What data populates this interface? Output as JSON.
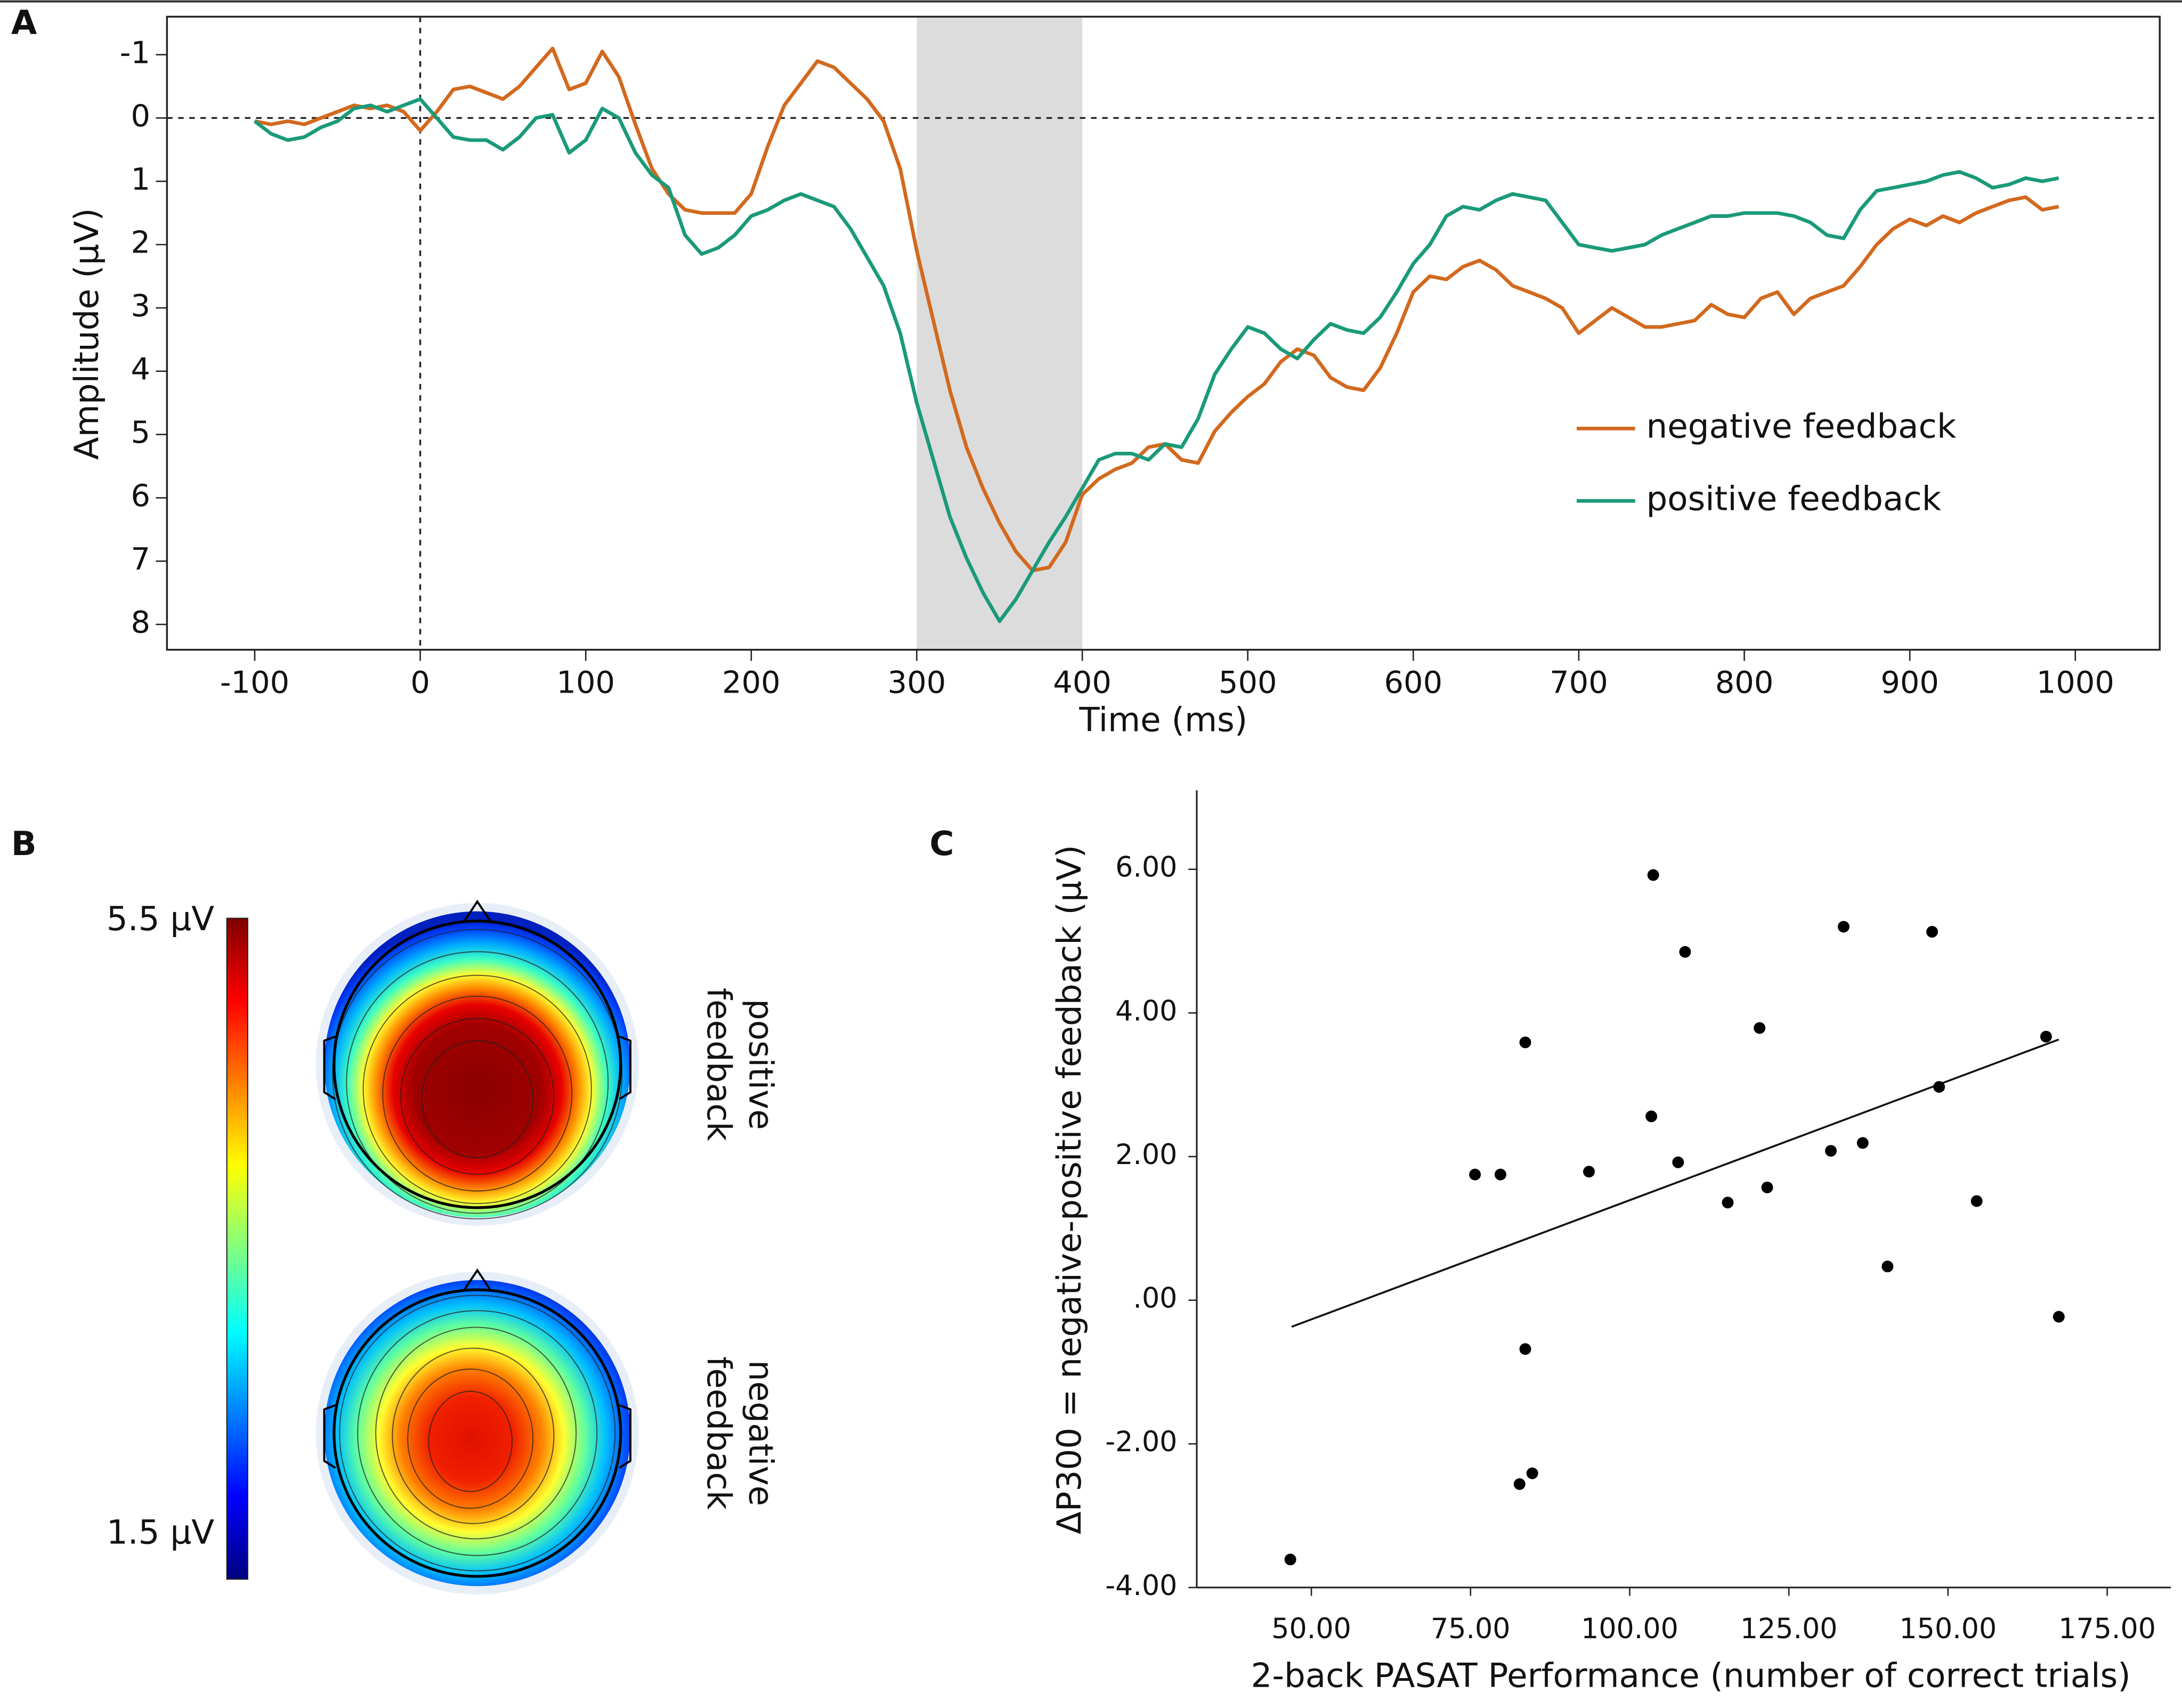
{
  "chart_data": [
    {
      "type": "line",
      "panel": "A",
      "xlabel": "Time (ms)",
      "ylabel": "Amplitude (µV)",
      "xlim": [
        -153,
        1051
      ],
      "ylim": [
        -1.6,
        8.4
      ],
      "y_inverted": true,
      "xticks": [
        -100,
        0,
        100,
        200,
        300,
        400,
        500,
        600,
        700,
        800,
        900,
        1000
      ],
      "yticks": [
        -1,
        0,
        1,
        2,
        3,
        4,
        5,
        6,
        7,
        8
      ],
      "shade": [
        300,
        400
      ],
      "hline": 0,
      "vline": 0,
      "legend": "lower right",
      "x": [
        -100,
        -90,
        -80,
        -70,
        -60,
        -50,
        -40,
        -30,
        -20,
        -10,
        0,
        10,
        20,
        30,
        40,
        50,
        60,
        70,
        80,
        90,
        100,
        110,
        120,
        130,
        140,
        150,
        160,
        170,
        180,
        190,
        200,
        210,
        220,
        230,
        240,
        250,
        260,
        270,
        280,
        290,
        300,
        310,
        320,
        330,
        340,
        350,
        360,
        370,
        380,
        390,
        400,
        410,
        420,
        430,
        440,
        450,
        460,
        470,
        480,
        490,
        500,
        510,
        520,
        530,
        540,
        550,
        560,
        570,
        580,
        590,
        600,
        610,
        620,
        630,
        640,
        650,
        660,
        670,
        680,
        690,
        700,
        710,
        720,
        730,
        740,
        750,
        760,
        770,
        780,
        790,
        800,
        810,
        820,
        830,
        840,
        850,
        860,
        870,
        880,
        890,
        900,
        910,
        920,
        930,
        940,
        950,
        960,
        970,
        980,
        990
      ],
      "series": [
        {
          "name": "negative feedback",
          "color": "#d2691e",
          "values": [
            0.05,
            0.1,
            0.05,
            0.1,
            0.0,
            -0.1,
            -0.2,
            -0.15,
            -0.2,
            -0.1,
            0.2,
            -0.1,
            -0.45,
            -0.5,
            -0.4,
            -0.3,
            -0.5,
            -0.8,
            -1.1,
            -0.45,
            -0.55,
            -1.05,
            -0.65,
            0.1,
            0.8,
            1.2,
            1.45,
            1.5,
            1.5,
            1.5,
            1.2,
            0.45,
            -0.2,
            -0.55,
            -0.9,
            -0.8,
            -0.55,
            -0.3,
            0.05,
            0.8,
            2.1,
            3.2,
            4.3,
            5.2,
            5.85,
            6.4,
            6.85,
            7.15,
            7.1,
            6.7,
            5.95,
            5.7,
            5.55,
            5.45,
            5.2,
            5.15,
            5.4,
            5.45,
            4.95,
            4.65,
            4.4,
            4.2,
            3.85,
            3.65,
            3.75,
            4.1,
            4.25,
            4.3,
            3.95,
            3.4,
            2.75,
            2.5,
            2.55,
            2.35,
            2.25,
            2.4,
            2.65,
            2.75,
            2.85,
            3.0,
            3.4,
            3.2,
            3.0,
            3.15,
            3.3,
            3.3,
            3.25,
            3.2,
            2.95,
            3.1,
            3.15,
            2.85,
            2.75,
            3.1,
            2.85,
            2.75,
            2.65,
            2.35,
            2.0,
            1.75,
            1.6,
            1.7,
            1.55,
            1.65,
            1.5,
            1.4,
            1.3,
            1.25,
            1.45,
            1.4
          ]
        },
        {
          "name": "positive feedback",
          "color": "#1a9a7a",
          "values": [
            0.05,
            0.25,
            0.35,
            0.3,
            0.15,
            0.05,
            -0.15,
            -0.2,
            -0.1,
            -0.2,
            -0.3,
            0,
            0.3,
            0.35,
            0.35,
            0.5,
            0.3,
            0,
            -0.05,
            0.55,
            0.35,
            -0.15,
            0,
            0.55,
            0.9,
            1.1,
            1.85,
            2.15,
            2.05,
            1.85,
            1.55,
            1.45,
            1.3,
            1.2,
            1.3,
            1.4,
            1.75,
            2.2,
            2.65,
            3.4,
            4.5,
            5.4,
            6.3,
            6.95,
            7.5,
            7.95,
            7.6,
            7.15,
            6.7,
            6.3,
            5.85,
            5.4,
            5.3,
            5.3,
            5.4,
            5.15,
            5.2,
            4.75,
            4.05,
            3.65,
            3.3,
            3.4,
            3.65,
            3.8,
            3.5,
            3.25,
            3.35,
            3.4,
            3.15,
            2.75,
            2.3,
            2.0,
            1.55,
            1.4,
            1.45,
            1.3,
            1.2,
            1.25,
            1.3,
            1.65,
            2.0,
            2.05,
            2.1,
            2.05,
            2.0,
            1.85,
            1.75,
            1.65,
            1.55,
            1.55,
            1.5,
            1.5,
            1.5,
            1.55,
            1.65,
            1.85,
            1.9,
            1.45,
            1.15,
            1.1,
            1.05,
            1.0,
            0.9,
            0.85,
            0.95,
            1.1,
            1.05,
            0.95,
            1.0,
            0.95
          ]
        }
      ]
    },
    {
      "type": "topomap",
      "panel": "B",
      "clim": [
        1.5,
        5.5
      ],
      "cticks": [
        {
          "value": 5.5,
          "label": "5.5 µV"
        },
        {
          "value": 1.5,
          "label": "1.5 µV"
        }
      ],
      "maps": [
        {
          "label_lines": [
            "positive",
            "feedback"
          ]
        },
        {
          "label_lines": [
            "negative",
            "feedback"
          ]
        }
      ]
    },
    {
      "type": "scatter",
      "panel": "C",
      "xlabel": "2-back PASAT Performance (number of correct trials)",
      "ylabel": "ΔP300 = negative-positive feedback (µV)",
      "color": "#000000",
      "xlim": [
        32,
        185
      ],
      "ylim": [
        -4,
        7.1
      ],
      "xticks": [
        {
          "value": 50,
          "label": "50.00"
        },
        {
          "value": 75,
          "label": "75.00"
        },
        {
          "value": 100,
          "label": "100.00"
        },
        {
          "value": 125,
          "label": "125.00"
        },
        {
          "value": 150,
          "label": "150.00"
        },
        {
          "value": 175,
          "label": "175.00"
        }
      ],
      "yticks": [
        {
          "value": -4,
          "label": "-4.00"
        },
        {
          "value": -2,
          "label": "-2.00"
        },
        {
          "value": 0,
          "label": ".00"
        },
        {
          "value": 2,
          "label": "2.00"
        },
        {
          "value": 4,
          "label": "4.00"
        },
        {
          "value": 6,
          "label": "6.00"
        }
      ],
      "x": [
        46.7,
        75.7,
        79.7,
        83.6,
        83.6,
        82.7,
        84.7,
        93.6,
        103.7,
        103.4,
        107.6,
        108.7,
        115.4,
        120.4,
        121.6,
        131.6,
        133.6,
        136.6,
        140.5,
        147.5,
        148.6,
        154.5,
        165.4,
        167.4
      ],
      "y": [
        -3.61,
        1.75,
        1.75,
        3.59,
        -0.68,
        -2.56,
        -2.41,
        1.79,
        5.92,
        2.56,
        1.92,
        4.85,
        1.36,
        3.79,
        1.57,
        2.08,
        5.2,
        2.19,
        0.47,
        5.13,
        2.97,
        1.38,
        3.67,
        -0.23
      ],
      "fit": {
        "x": [
          46.9,
          167.4
        ],
        "y": [
          -0.37,
          3.63
        ]
      }
    }
  ]
}
